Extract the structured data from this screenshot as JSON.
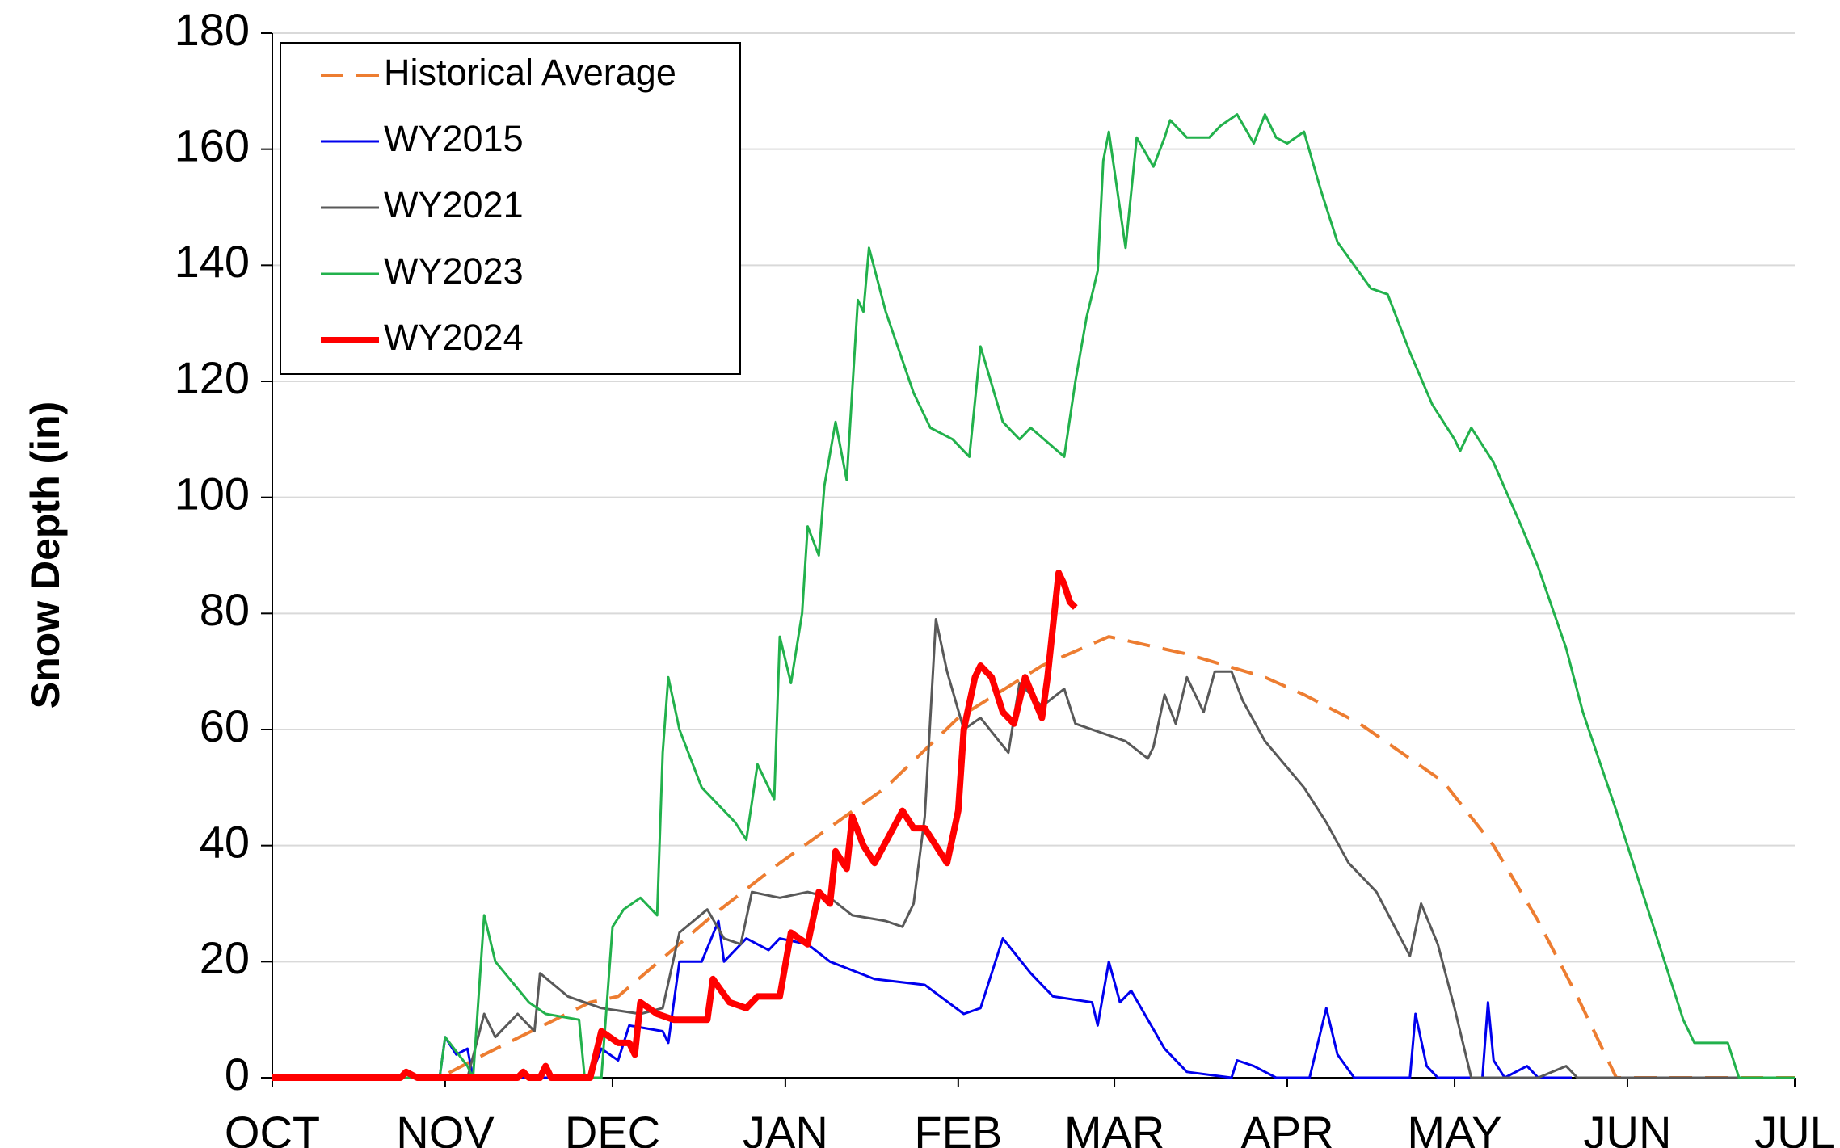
{
  "chart_data": {
    "type": "line",
    "ylabel": "Snow Depth (in)",
    "xlim": [
      0,
      273
    ],
    "xticks": [
      {
        "value": 0,
        "label": "OCT"
      },
      {
        "value": 31,
        "label": "NOV"
      },
      {
        "value": 61,
        "label": "DEC"
      },
      {
        "value": 92,
        "label": "JAN"
      },
      {
        "value": 123,
        "label": "FEB"
      },
      {
        "value": 151,
        "label": "MAR"
      },
      {
        "value": 182,
        "label": "APR"
      },
      {
        "value": 212,
        "label": "MAY"
      },
      {
        "value": 243,
        "label": "JUN"
      },
      {
        "value": 273,
        "label": "JUL"
      }
    ],
    "ylim": [
      0,
      180
    ],
    "yticks": [
      0,
      20,
      40,
      60,
      80,
      100,
      120,
      140,
      160,
      180
    ],
    "grid": true,
    "legend": "upper left",
    "series": [
      {
        "name": "Historical Average",
        "color": "#ed7d31",
        "linestyle": "dashed",
        "linewidth": 4,
        "x": [
          0,
          30,
          38,
          57,
          62,
          79,
          91,
          110,
          123,
          138,
          150,
          164,
          178,
          185,
          195,
          210,
          219,
          227,
          234,
          241,
          273
        ],
        "values": [
          0,
          0,
          4,
          13,
          14,
          28,
          37,
          50,
          62,
          71,
          76,
          73,
          69,
          66,
          61,
          51,
          40,
          27,
          14,
          0,
          0
        ]
      },
      {
        "name": "WY2015",
        "color": "#0000ee",
        "linestyle": "solid",
        "linewidth": 3,
        "x": [
          0,
          30,
          31,
          33,
          35,
          36,
          57,
          59,
          62,
          64,
          70,
          71,
          73,
          77,
          80,
          81,
          85,
          89,
          91,
          96,
          100,
          108,
          117,
          124,
          127,
          131,
          136,
          140,
          147,
          148,
          150,
          152,
          154,
          160,
          164,
          172,
          173,
          176,
          180,
          186,
          189,
          191,
          194,
          204,
          205,
          207,
          209,
          217,
          218,
          219,
          221,
          225,
          227,
          233
        ],
        "values": [
          0,
          0,
          7,
          4,
          5,
          0,
          0,
          5,
          3,
          9,
          8,
          6,
          20,
          20,
          27,
          20,
          24,
          22,
          24,
          23,
          20,
          17,
          16,
          11,
          12,
          24,
          18,
          14,
          13,
          9,
          20,
          13,
          15,
          5,
          1,
          0,
          3,
          2,
          0,
          0,
          12,
          4,
          0,
          0,
          11,
          2,
          0,
          0,
          13,
          3,
          0,
          2,
          0,
          0
        ]
      },
      {
        "name": "WY2021",
        "color": "#595959",
        "linestyle": "solid",
        "linewidth": 3,
        "x": [
          0,
          35,
          38,
          40,
          44,
          47,
          48,
          53,
          59,
          66,
          70,
          73,
          78,
          81,
          84,
          86,
          91,
          96,
          100,
          104,
          110,
          113,
          115,
          117,
          119,
          121,
          124,
          127,
          132,
          134,
          138,
          142,
          144,
          153,
          157,
          158,
          160,
          162,
          164,
          167,
          169,
          172,
          174,
          178,
          185,
          189,
          193,
          198,
          204,
          206,
          209,
          212,
          215,
          227,
          232,
          234,
          273
        ],
        "values": [
          0,
          0,
          11,
          7,
          11,
          8,
          18,
          14,
          12,
          11,
          12,
          25,
          29,
          24,
          23,
          32,
          31,
          32,
          31,
          28,
          27,
          26,
          30,
          45,
          79,
          70,
          60,
          62,
          56,
          68,
          64,
          67,
          61,
          58,
          55,
          57,
          66,
          61,
          69,
          63,
          70,
          70,
          65,
          58,
          50,
          44,
          37,
          32,
          21,
          30,
          23,
          12,
          0,
          0,
          2,
          0,
          0
        ]
      },
      {
        "name": "WY2023",
        "color": "#22b14c",
        "linestyle": "solid",
        "linewidth": 3,
        "x": [
          0,
          30,
          31,
          35,
          36,
          38,
          40,
          46,
          49,
          55,
          56,
          59,
          61,
          63,
          66,
          69,
          70,
          71,
          73,
          77,
          83,
          85,
          87,
          90,
          91,
          93,
          95,
          96,
          98,
          99,
          101,
          103,
          105,
          106,
          107,
          110,
          115,
          118,
          122,
          125,
          127,
          131,
          134,
          136,
          142,
          144,
          146,
          148,
          149,
          150,
          153,
          155,
          158,
          160,
          161,
          164,
          168,
          170,
          173,
          176,
          178,
          180,
          182,
          185,
          188,
          191,
          197,
          200,
          204,
          208,
          212,
          213,
          215,
          219,
          224,
          227,
          232,
          235,
          241,
          249,
          253,
          255,
          261,
          263,
          273
        ],
        "values": [
          0,
          0,
          7,
          2,
          0,
          28,
          20,
          13,
          11,
          10,
          0,
          0,
          26,
          29,
          31,
          28,
          56,
          69,
          60,
          50,
          44,
          41,
          54,
          48,
          76,
          68,
          80,
          95,
          90,
          102,
          113,
          103,
          134,
          132,
          143,
          132,
          118,
          112,
          110,
          107,
          126,
          113,
          110,
          112,
          107,
          120,
          131,
          139,
          158,
          163,
          143,
          162,
          157,
          162,
          165,
          162,
          162,
          164,
          166,
          161,
          166,
          162,
          161,
          163,
          153,
          144,
          136,
          135,
          125,
          116,
          110,
          108,
          112,
          106,
          95,
          88,
          74,
          63,
          46,
          22,
          10,
          6,
          6,
          0,
          0
        ]
      },
      {
        "name": "WY2024",
        "color": "#ff0000",
        "linestyle": "solid",
        "linewidth": 8,
        "x": [
          0,
          23,
          24,
          26,
          44,
          45,
          46,
          48,
          49,
          50,
          57,
          59,
          62,
          64,
          65,
          66,
          69,
          72,
          78,
          79,
          82,
          85,
          87,
          91,
          93,
          96,
          98,
          100,
          101,
          103,
          104,
          106,
          108,
          113,
          115,
          117,
          121,
          123,
          124,
          126,
          127,
          129,
          131,
          133,
          135,
          138,
          139,
          141,
          142,
          143,
          144
        ],
        "values": [
          0,
          0,
          1,
          0,
          0,
          1,
          0,
          0,
          2,
          0,
          0,
          8,
          6,
          6,
          4,
          13,
          11,
          10,
          10,
          17,
          13,
          12,
          14,
          14,
          25,
          23,
          32,
          30,
          39,
          36,
          45,
          40,
          37,
          46,
          43,
          43,
          37,
          46,
          60,
          69,
          71,
          69,
          63,
          61,
          69,
          62,
          69,
          87,
          85,
          82,
          81
        ]
      }
    ]
  }
}
